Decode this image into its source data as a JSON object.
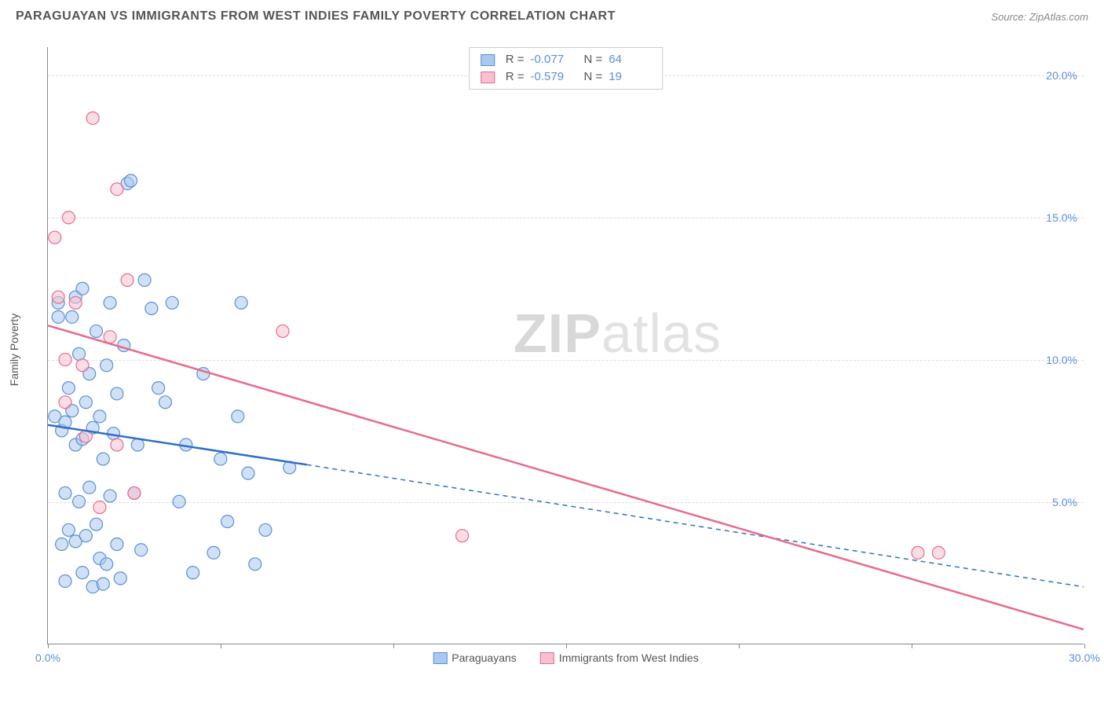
{
  "header": {
    "title": "PARAGUAYAN VS IMMIGRANTS FROM WEST INDIES FAMILY POVERTY CORRELATION CHART",
    "source_label": "Source: ",
    "source_name": "ZipAtlas.com"
  },
  "watermark": {
    "part1": "ZIP",
    "part2": "atlas"
  },
  "chart": {
    "type": "scatter",
    "y_axis_label": "Family Poverty",
    "xlim": [
      0,
      30
    ],
    "ylim": [
      0,
      21
    ],
    "x_ticks": [
      0,
      5,
      10,
      15,
      20,
      25,
      30
    ],
    "x_tick_labels": [
      "0.0%",
      "",
      "",
      "",
      "",
      "",
      "30.0%"
    ],
    "y_ticks": [
      5,
      10,
      15,
      20
    ],
    "y_tick_labels": [
      "5.0%",
      "10.0%",
      "15.0%",
      "20.0%"
    ],
    "grid_color": "#dddddd",
    "axis_color": "#888888",
    "background_color": "#ffffff",
    "tick_label_color": "#5b8fd6",
    "series": [
      {
        "name": "Paraguayans",
        "fill": "#a9c9ee",
        "stroke": "#5b8fd6",
        "fill_opacity": 0.55,
        "marker_radius": 8,
        "R": "-0.077",
        "N": "64",
        "regression": {
          "solid": {
            "x1": 0,
            "y1": 7.7,
            "x2": 7.5,
            "y2": 6.3
          },
          "dashed": {
            "x1": 7.5,
            "y1": 6.3,
            "x2": 30,
            "y2": 2.0
          },
          "stroke": "#2f6fc7",
          "width": 2.5
        },
        "points": [
          [
            0.2,
            8.0
          ],
          [
            0.3,
            11.5
          ],
          [
            0.3,
            12.0
          ],
          [
            0.4,
            7.5
          ],
          [
            0.4,
            3.5
          ],
          [
            0.5,
            7.8
          ],
          [
            0.5,
            5.3
          ],
          [
            0.5,
            2.2
          ],
          [
            0.6,
            9.0
          ],
          [
            0.6,
            4.0
          ],
          [
            0.7,
            11.5
          ],
          [
            0.7,
            8.2
          ],
          [
            0.8,
            12.2
          ],
          [
            0.8,
            7.0
          ],
          [
            0.8,
            3.6
          ],
          [
            0.9,
            10.2
          ],
          [
            0.9,
            5.0
          ],
          [
            1.0,
            12.5
          ],
          [
            1.0,
            7.2
          ],
          [
            1.0,
            2.5
          ],
          [
            1.1,
            8.5
          ],
          [
            1.1,
            3.8
          ],
          [
            1.2,
            9.5
          ],
          [
            1.2,
            5.5
          ],
          [
            1.3,
            7.6
          ],
          [
            1.3,
            2.0
          ],
          [
            1.4,
            11.0
          ],
          [
            1.4,
            4.2
          ],
          [
            1.5,
            8.0
          ],
          [
            1.5,
            3.0
          ],
          [
            1.6,
            6.5
          ],
          [
            1.7,
            9.8
          ],
          [
            1.7,
            2.8
          ],
          [
            1.8,
            12.0
          ],
          [
            1.8,
            5.2
          ],
          [
            1.9,
            7.4
          ],
          [
            2.0,
            3.5
          ],
          [
            2.0,
            8.8
          ],
          [
            2.1,
            2.3
          ],
          [
            2.2,
            10.5
          ],
          [
            2.3,
            16.2
          ],
          [
            2.4,
            16.3
          ],
          [
            2.5,
            5.3
          ],
          [
            2.6,
            7.0
          ],
          [
            2.8,
            12.8
          ],
          [
            3.0,
            11.8
          ],
          [
            3.2,
            9.0
          ],
          [
            3.4,
            8.5
          ],
          [
            3.6,
            12.0
          ],
          [
            3.8,
            5.0
          ],
          [
            4.0,
            7.0
          ],
          [
            4.2,
            2.5
          ],
          [
            4.5,
            9.5
          ],
          [
            4.8,
            3.2
          ],
          [
            5.0,
            6.5
          ],
          [
            5.2,
            4.3
          ],
          [
            5.5,
            8.0
          ],
          [
            5.6,
            12.0
          ],
          [
            5.8,
            6.0
          ],
          [
            6.0,
            2.8
          ],
          [
            6.3,
            4.0
          ],
          [
            7.0,
            6.2
          ],
          [
            2.7,
            3.3
          ],
          [
            1.6,
            2.1
          ]
        ]
      },
      {
        "name": "Immigrants from West Indies",
        "fill": "#f7c1cf",
        "stroke": "#e86a8b",
        "fill_opacity": 0.55,
        "marker_radius": 8,
        "R": "-0.579",
        "N": "19",
        "regression": {
          "solid": {
            "x1": 0,
            "y1": 11.2,
            "x2": 30,
            "y2": 0.5
          },
          "dashed": null,
          "stroke": "#e86a8b",
          "width": 2.5
        },
        "points": [
          [
            0.2,
            14.3
          ],
          [
            0.3,
            12.2
          ],
          [
            0.5,
            10.0
          ],
          [
            0.5,
            8.5
          ],
          [
            0.6,
            15.0
          ],
          [
            0.8,
            12.0
          ],
          [
            1.0,
            9.8
          ],
          [
            1.1,
            7.3
          ],
          [
            1.3,
            18.5
          ],
          [
            1.5,
            4.8
          ],
          [
            1.8,
            10.8
          ],
          [
            2.0,
            7.0
          ],
          [
            2.0,
            16.0
          ],
          [
            2.3,
            12.8
          ],
          [
            2.5,
            5.3
          ],
          [
            6.8,
            11.0
          ],
          [
            12.0,
            3.8
          ],
          [
            25.2,
            3.2
          ],
          [
            25.8,
            3.2
          ]
        ]
      }
    ],
    "legend_bottom": [
      {
        "label": "Paraguayans",
        "fill": "#a9c9ee",
        "stroke": "#5b8fd6"
      },
      {
        "label": "Immigrants from West Indies",
        "fill": "#f7c1cf",
        "stroke": "#e86a8b"
      }
    ]
  }
}
